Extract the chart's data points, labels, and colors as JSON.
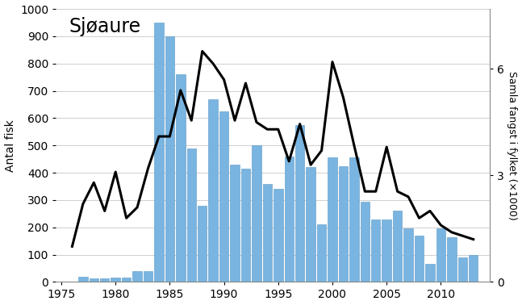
{
  "title": "Sjøaure",
  "ylabel_left": "Antal fisk",
  "ylabel_right": "Samla fangst i fylket (×1000)",
  "bar_color": "#7ab4e0",
  "bar_edge_color": "#5a9ac8",
  "line_color": "#000000",
  "background_color": "#ffffff",
  "years": [
    1975,
    1976,
    1977,
    1978,
    1979,
    1980,
    1981,
    1982,
    1983,
    1984,
    1985,
    1986,
    1987,
    1988,
    1989,
    1990,
    1991,
    1992,
    1993,
    1994,
    1995,
    1996,
    1997,
    1998,
    1999,
    2000,
    2001,
    2002,
    2003,
    2004,
    2005,
    2006,
    2007,
    2008,
    2009,
    2010,
    2011,
    2012,
    2013
  ],
  "bar_values": [
    0,
    2,
    20,
    12,
    12,
    15,
    15,
    40,
    40,
    950,
    900,
    760,
    490,
    280,
    670,
    625,
    430,
    415,
    500,
    360,
    340,
    460,
    575,
    420,
    210,
    455,
    425,
    455,
    295,
    230,
    230,
    260,
    195,
    170,
    65,
    195,
    165,
    90,
    100
  ],
  "line_years": [
    1976,
    1977,
    1978,
    1979,
    1980,
    1981,
    1982,
    1983,
    1984,
    1985,
    1986,
    1987,
    1988,
    1989,
    1990,
    1991,
    1992,
    1993,
    1994,
    1995,
    1996,
    1997,
    1998,
    1999,
    2000,
    2001,
    2002,
    2003,
    2004,
    2005,
    2006,
    2007,
    2008,
    2009,
    2010,
    2011,
    2012,
    2013
  ],
  "line_values": [
    1.0,
    2.2,
    2.8,
    2.0,
    3.1,
    1.8,
    2.1,
    3.2,
    4.1,
    4.1,
    5.4,
    4.55,
    6.5,
    6.15,
    5.7,
    4.55,
    5.6,
    4.5,
    4.3,
    4.3,
    3.4,
    4.45,
    3.3,
    3.7,
    6.2,
    5.2,
    3.85,
    2.55,
    2.55,
    3.8,
    2.55,
    2.4,
    1.8,
    2.0,
    1.6,
    1.4,
    1.3,
    1.2
  ],
  "ylim_left": [
    0,
    1000
  ],
  "ylim_right": [
    0,
    7.692
  ],
  "yticks_left": [
    0,
    100,
    200,
    300,
    400,
    500,
    600,
    700,
    800,
    900,
    1000
  ],
  "yticks_right": [
    0,
    3,
    6
  ],
  "xlim": [
    1974.5,
    2014.5
  ],
  "xticks": [
    1975,
    1980,
    1985,
    1990,
    1995,
    2000,
    2005,
    2010
  ]
}
